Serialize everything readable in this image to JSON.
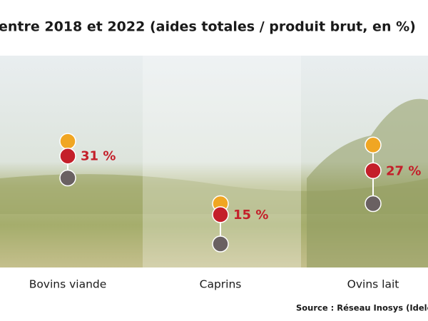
{
  "chart_data": {
    "type": "dot",
    "title": "entre 2018 et 2022 (aides totales / produit brut, en %)",
    "source": "Source : Réseau Inosys (Idele, cha",
    "categories": [
      "Bovins viande",
      "Caprins",
      "Ovins lait"
    ],
    "series": [
      {
        "color": "#f0a623",
        "values": [
          35,
          18,
          34
        ]
      },
      {
        "color": "#c41f2a",
        "values": [
          31,
          15,
          27
        ],
        "value_labels": [
          "31 %",
          "15 %",
          "27 %"
        ]
      },
      {
        "color": "#6a6162",
        "values": [
          25,
          7,
          18
        ]
      }
    ],
    "ylim": [
      0,
      58
    ]
  }
}
